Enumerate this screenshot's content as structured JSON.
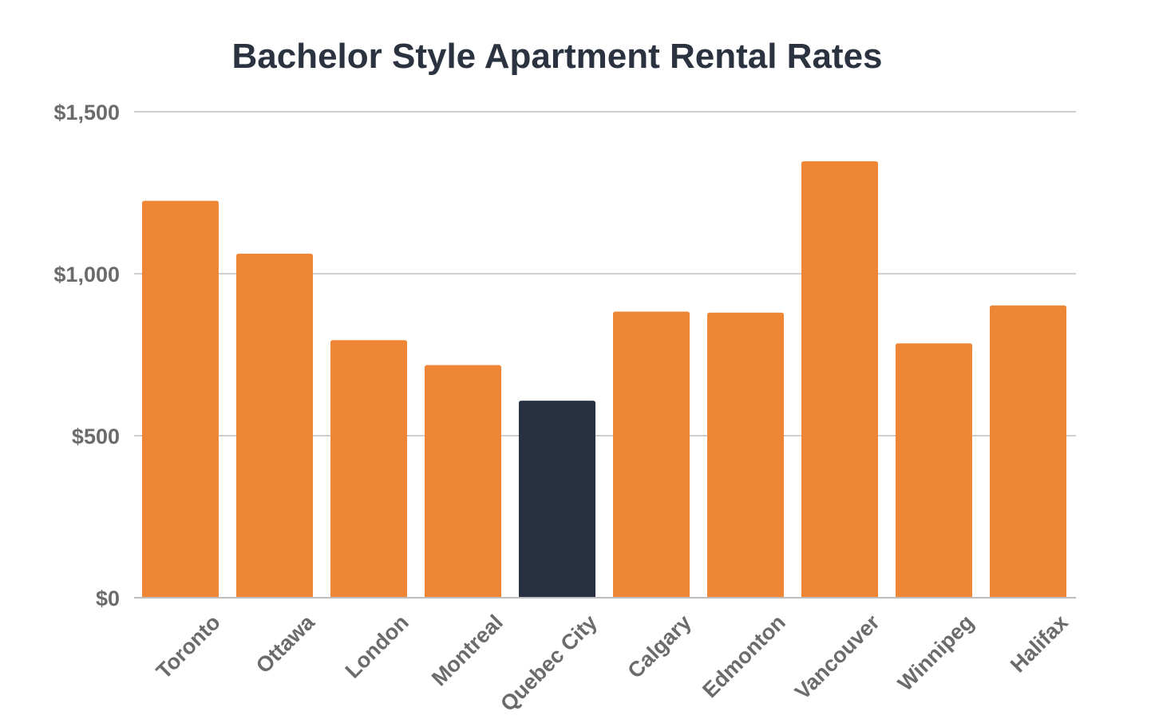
{
  "chart_data": {
    "type": "bar",
    "title": "Bachelor Style Apartment Rental Rates",
    "xlabel": "",
    "ylabel": "",
    "categories": [
      "Toronto",
      "Ottawa",
      "London",
      "Montreal",
      "Quebec City",
      "Calgary",
      "Edmonton",
      "Vancouver",
      "Winnipeg",
      "Halifax"
    ],
    "values": [
      1225,
      1062,
      795,
      718,
      608,
      883,
      880,
      1347,
      785,
      902
    ],
    "highlight_index": 4,
    "ylim": [
      0,
      1500
    ],
    "yticks": [
      0,
      500,
      1000,
      1500
    ],
    "ytick_labels": [
      "$0",
      "$500",
      "$1,000",
      "$1,500"
    ],
    "grid": true,
    "legend": "none",
    "colors": {
      "bar": "#ef8636",
      "highlight": "#263040",
      "grid": "#cfcfcf",
      "axis": "#bdbdbd",
      "title": "#2b3340",
      "tick_text": "#6b6b6b"
    }
  }
}
